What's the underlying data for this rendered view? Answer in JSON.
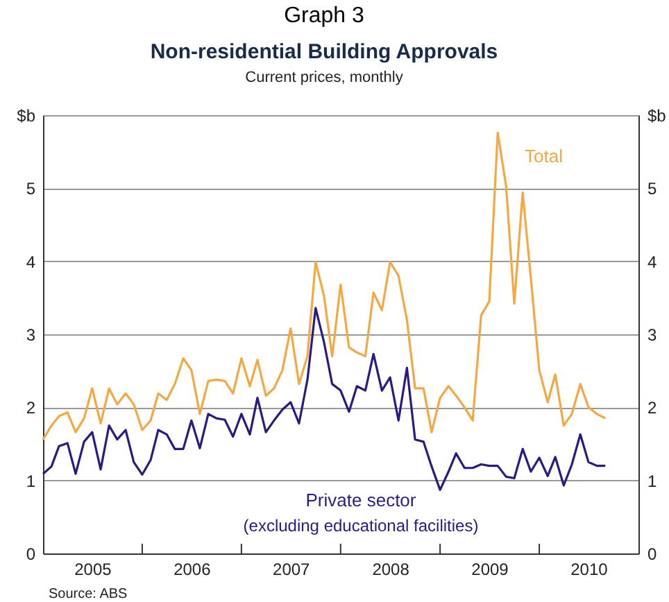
{
  "chart_data": {
    "type": "line",
    "title": "Non-residential Building Approvals",
    "subtitle": "Current prices, monthly",
    "annotations": [
      "Graph 3",
      "(excluding educational facilities)",
      "Source: ABS"
    ],
    "x": [
      "2005-01",
      "2005-02",
      "2005-03",
      "2005-04",
      "2005-05",
      "2005-06",
      "2005-07",
      "2005-08",
      "2005-09",
      "2005-10",
      "2005-11",
      "2005-12",
      "2006-01",
      "2006-02",
      "2006-03",
      "2006-04",
      "2006-05",
      "2006-06",
      "2006-07",
      "2006-08",
      "2006-09",
      "2006-10",
      "2006-11",
      "2006-12",
      "2007-01",
      "2007-02",
      "2007-03",
      "2007-04",
      "2007-05",
      "2007-06",
      "2007-07",
      "2007-08",
      "2007-09",
      "2007-10",
      "2007-11",
      "2007-12",
      "2008-01",
      "2008-02",
      "2008-03",
      "2008-04",
      "2008-05",
      "2008-06",
      "2008-07",
      "2008-08",
      "2008-09",
      "2008-10",
      "2008-11",
      "2008-12",
      "2009-01",
      "2009-02",
      "2009-03",
      "2009-04",
      "2009-05",
      "2009-06",
      "2009-07",
      "2009-08",
      "2009-09",
      "2009-10",
      "2009-11",
      "2009-12",
      "2010-01",
      "2010-02",
      "2010-03",
      "2010-04",
      "2010-05",
      "2010-06",
      "2010-07",
      "2010-08",
      "2010-09"
    ],
    "series": [
      {
        "name": "Total",
        "color": "#f5a742",
        "values": [
          1.56,
          1.75,
          1.88,
          1.93,
          1.66,
          1.85,
          2.26,
          1.78,
          2.26,
          2.04,
          2.19,
          2.04,
          1.69,
          1.82,
          2.19,
          2.1,
          2.32,
          2.67,
          2.51,
          1.91,
          2.36,
          2.38,
          2.36,
          2.19,
          2.67,
          2.29,
          2.65,
          2.16,
          2.26,
          2.51,
          3.08,
          2.32,
          2.7,
          3.99,
          3.52,
          2.7,
          3.68,
          2.82,
          2.75,
          2.7,
          3.57,
          3.33,
          3.99,
          3.8,
          3.2,
          2.26,
          2.26,
          1.66,
          2.13,
          2.29,
          2.16,
          2.0,
          1.82,
          3.26,
          3.45,
          5.76,
          5.03,
          3.42,
          4.94,
          3.77,
          2.51,
          2.07,
          2.45,
          1.75,
          1.91,
          2.32,
          2.0,
          1.91,
          1.85
        ]
      },
      {
        "name": "Private sector",
        "color": "#2b1a80",
        "values": [
          1.09,
          1.19,
          1.47,
          1.51,
          1.09,
          1.53,
          1.66,
          1.15,
          1.75,
          1.56,
          1.69,
          1.25,
          1.08,
          1.28,
          1.69,
          1.63,
          1.43,
          1.43,
          1.82,
          1.44,
          1.91,
          1.85,
          1.83,
          1.6,
          1.91,
          1.63,
          2.13,
          1.66,
          1.82,
          1.97,
          2.07,
          1.78,
          2.38,
          3.36,
          2.89,
          2.32,
          2.23,
          1.94,
          2.29,
          2.23,
          2.73,
          2.23,
          2.41,
          1.82,
          2.54,
          1.56,
          1.53,
          1.19,
          0.87,
          1.12,
          1.37,
          1.17,
          1.17,
          1.22,
          1.2,
          1.2,
          1.05,
          1.03,
          1.43,
          1.12,
          1.31,
          1.06,
          1.32,
          0.93,
          1.22,
          1.63,
          1.25,
          1.2,
          1.2
        ]
      }
    ],
    "xlim": [
      "2005-01",
      "2011-01"
    ],
    "xticks": [
      {
        "value": "2005-07",
        "label": "2005"
      },
      {
        "value": "2006-01",
        "label": null
      },
      {
        "value": "2006-07",
        "label": "2006"
      },
      {
        "value": "2007-01",
        "label": null
      },
      {
        "value": "2007-07",
        "label": "2007"
      },
      {
        "value": "2008-01",
        "label": null
      },
      {
        "value": "2008-07",
        "label": "2008"
      },
      {
        "value": "2009-01",
        "label": null
      },
      {
        "value": "2009-07",
        "label": "2009"
      },
      {
        "value": "2010-01",
        "label": null
      },
      {
        "value": "2010-07",
        "label": "2010"
      }
    ],
    "ylim": [
      0,
      6
    ],
    "yticks": [
      0,
      1,
      2,
      3,
      4,
      5,
      {
        "value": 6,
        "label": "$b"
      }
    ],
    "y2lim": [
      0,
      6
    ],
    "y2ticks": [
      0,
      1,
      2,
      3,
      4,
      5,
      {
        "value": 6,
        "label": "$b"
      }
    ],
    "grid": "y",
    "legend": false,
    "marker": "none",
    "line_style": "solid"
  }
}
